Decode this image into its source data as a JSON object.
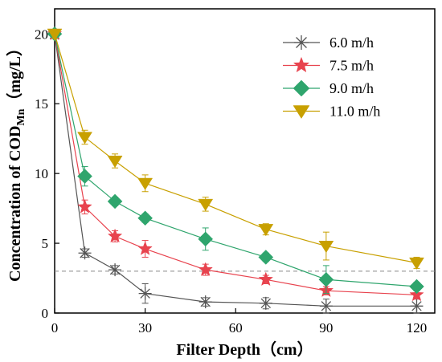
{
  "chart_data": {
    "type": "line",
    "xlabel": "Filter Depth（cm）",
    "ylabel": {
      "main": "Concentration of COD",
      "sub": "Mn",
      "unit": "（mg/L）"
    },
    "xlim": [
      0,
      126
    ],
    "ylim": [
      0,
      21.8
    ],
    "xticks": [
      0,
      30,
      60,
      90,
      120
    ],
    "yticks": [
      0,
      5,
      10,
      15,
      20
    ],
    "x": [
      0,
      10,
      20,
      30,
      50,
      70,
      90,
      120
    ],
    "reference_line": {
      "y": 3.0,
      "style": "dashed"
    },
    "legend_position": "top-right",
    "series": [
      {
        "name": "6.0 m/h",
        "color": "#555555",
        "marker": "asterisk",
        "values": [
          20,
          4.3,
          3.1,
          1.4,
          0.8,
          0.7,
          0.5,
          0.5
        ],
        "errors": [
          0.3,
          0.3,
          0.3,
          0.7,
          0.3,
          0.4,
          0.5,
          0.5
        ]
      },
      {
        "name": "7.5 m/h",
        "color": "#e8434e",
        "marker": "star",
        "values": [
          20,
          7.6,
          5.5,
          4.6,
          3.1,
          2.4,
          1.6,
          1.3
        ],
        "errors": [
          0.3,
          0.5,
          0.4,
          0.6,
          0.4,
          0.3,
          0.3,
          0.3
        ]
      },
      {
        "name": "9.0 m/h",
        "color": "#2fa56d",
        "marker": "diamond",
        "values": [
          20,
          9.8,
          8.0,
          6.8,
          5.3,
          4.0,
          2.4,
          1.9
        ],
        "errors": [
          0.3,
          0.7,
          0.3,
          0.3,
          0.8,
          0.3,
          1.0,
          0.3
        ]
      },
      {
        "name": "11.0 m/h",
        "color": "#c8a000",
        "marker": "triangle-down",
        "values": [
          20,
          12.6,
          10.9,
          9.3,
          7.8,
          6.0,
          4.8,
          3.6
        ],
        "errors": [
          0.3,
          0.5,
          0.5,
          0.6,
          0.5,
          0.4,
          1.0,
          0.4
        ]
      }
    ]
  }
}
